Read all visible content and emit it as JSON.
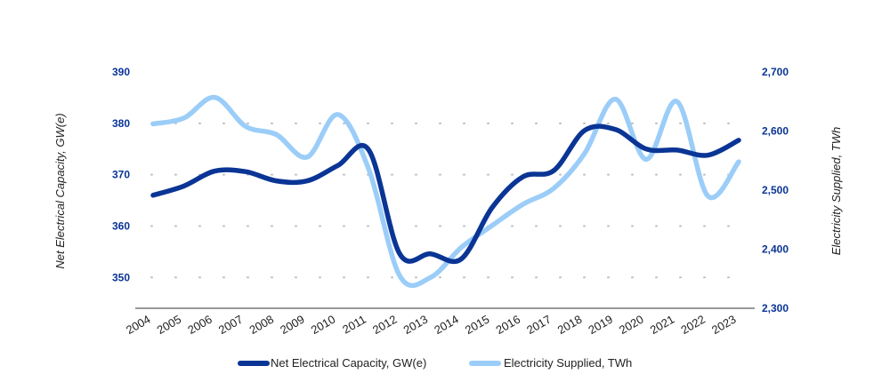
{
  "chart_data": {
    "type": "line",
    "x": [
      "2004",
      "2005",
      "2006",
      "2007",
      "2008",
      "2009",
      "2010",
      "2011",
      "2012",
      "2013",
      "2014",
      "2015",
      "2016",
      "2017",
      "2018",
      "2019",
      "2020",
      "2021",
      "2022",
      "2023"
    ],
    "left_axis": {
      "label": "Net Electrical Capacity, GW(e)",
      "min": 344,
      "max": 390,
      "ticks": [
        350,
        360,
        370,
        380,
        390
      ],
      "tick_labels": [
        "350",
        "360",
        "370",
        "380",
        "390"
      ]
    },
    "right_axis": {
      "label": "Electricity Supplied, TWh",
      "min": 2300,
      "max": 2700,
      "ticks": [
        2300,
        2400,
        2500,
        2600,
        2700
      ],
      "tick_labels": [
        "2,300",
        "2,400",
        "2,500",
        "2,600",
        "2,700"
      ]
    },
    "series": [
      {
        "name": "Net Electrical Capacity, GW(e)",
        "axis": "left",
        "color": "#0a3595",
        "values": [
          366.0,
          367.8,
          370.7,
          370.6,
          368.8,
          368.8,
          371.8,
          374.8,
          354.6,
          354.6,
          353.6,
          363.6,
          369.6,
          370.8,
          378.6,
          378.8,
          375.0,
          374.8,
          373.8,
          376.7
        ]
      },
      {
        "name": "Electricity Supplied, TWh",
        "axis": "right",
        "color": "#9bcdf8",
        "values": [
          2612,
          2622,
          2657,
          2608,
          2594,
          2556,
          2628,
          2535,
          2355,
          2352,
          2403,
          2440,
          2476,
          2503,
          2562,
          2654,
          2552,
          2650,
          2490,
          2548
        ]
      }
    ],
    "grid": true,
    "legend_position": "bottom"
  }
}
